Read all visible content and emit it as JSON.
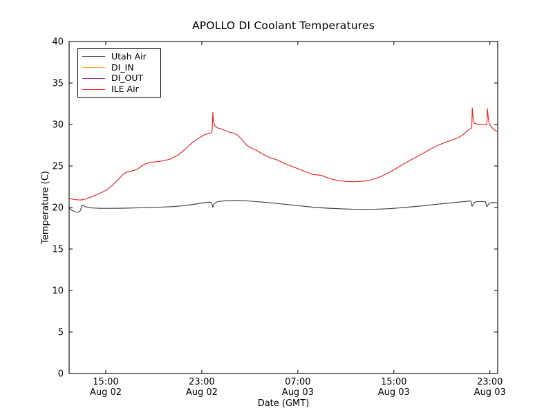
{
  "chart_data": {
    "type": "line",
    "title": "APOLLO DI Coolant Temperatures",
    "xlabel": "Date (GMT)",
    "ylabel": "Temperature (C)",
    "grid": false,
    "legend_position": "upper left",
    "ylim": [
      0,
      40
    ],
    "yticks": [
      0,
      5,
      10,
      15,
      20,
      25,
      30,
      35,
      40
    ],
    "x_unit_hours_since": "Aug 02 00:00 GMT",
    "xlim": [
      11.95,
      47.65
    ],
    "xticks": [
      {
        "value": 15,
        "label": "15:00",
        "sublabel": "Aug 02"
      },
      {
        "value": 23,
        "label": "23:00",
        "sublabel": "Aug 02"
      },
      {
        "value": 31,
        "label": "07:00",
        "sublabel": "Aug 03"
      },
      {
        "value": 39,
        "label": "15:00",
        "sublabel": "Aug 03"
      },
      {
        "value": 47,
        "label": "23:00",
        "sublabel": "Aug 03"
      }
    ],
    "series": [
      {
        "name": "Utah Air",
        "color": "#3f3f3f",
        "points": [
          [
            11.95,
            19.95
          ],
          [
            12.15,
            19.7
          ],
          [
            12.4,
            19.5
          ],
          [
            12.65,
            19.42
          ],
          [
            12.85,
            19.55
          ],
          [
            13.05,
            20.3
          ],
          [
            13.3,
            20.1
          ],
          [
            13.7,
            19.97
          ],
          [
            14.5,
            19.9
          ],
          [
            15.5,
            19.9
          ],
          [
            16.5,
            19.92
          ],
          [
            17.5,
            19.95
          ],
          [
            18.5,
            19.98
          ],
          [
            19.5,
            20.03
          ],
          [
            20.5,
            20.1
          ],
          [
            21.5,
            20.22
          ],
          [
            22.5,
            20.42
          ],
          [
            23.2,
            20.58
          ],
          [
            23.65,
            20.65
          ],
          [
            23.82,
            20.6
          ],
          [
            23.92,
            20.02
          ],
          [
            24.05,
            20.5
          ],
          [
            24.35,
            20.72
          ],
          [
            25.0,
            20.82
          ],
          [
            25.8,
            20.85
          ],
          [
            26.6,
            20.82
          ],
          [
            27.5,
            20.72
          ],
          [
            28.5,
            20.6
          ],
          [
            29.5,
            20.45
          ],
          [
            30.5,
            20.3
          ],
          [
            31.5,
            20.15
          ],
          [
            32.5,
            20.0
          ],
          [
            33.5,
            19.92
          ],
          [
            34.5,
            19.85
          ],
          [
            35.5,
            19.8
          ],
          [
            36.5,
            19.78
          ],
          [
            37.5,
            19.8
          ],
          [
            38.5,
            19.85
          ],
          [
            39.5,
            19.95
          ],
          [
            40.5,
            20.08
          ],
          [
            41.5,
            20.22
          ],
          [
            42.5,
            20.38
          ],
          [
            43.5,
            20.52
          ],
          [
            44.4,
            20.65
          ],
          [
            45.1,
            20.75
          ],
          [
            45.42,
            20.78
          ],
          [
            45.52,
            20.15
          ],
          [
            45.68,
            20.6
          ],
          [
            45.95,
            20.72
          ],
          [
            46.3,
            20.72
          ],
          [
            46.62,
            20.7
          ],
          [
            46.76,
            20.08
          ],
          [
            46.92,
            20.5
          ],
          [
            47.25,
            20.62
          ],
          [
            47.65,
            20.55
          ]
        ]
      },
      {
        "name": "DI_IN",
        "color": "#ffaa2b",
        "points": []
      },
      {
        "name": "DI_OUT",
        "color": "#993d99",
        "points": []
      },
      {
        "name": "ILE Air",
        "color": "#ee2222",
        "points": [
          [
            11.95,
            21.1
          ],
          [
            12.4,
            20.95
          ],
          [
            12.9,
            20.9
          ],
          [
            13.4,
            21.05
          ],
          [
            13.9,
            21.35
          ],
          [
            14.5,
            21.7
          ],
          [
            15.0,
            22.05
          ],
          [
            15.5,
            22.6
          ],
          [
            16.0,
            23.3
          ],
          [
            16.45,
            24.0
          ],
          [
            16.7,
            24.25
          ],
          [
            17.2,
            24.4
          ],
          [
            17.6,
            24.6
          ],
          [
            18.0,
            25.0
          ],
          [
            18.35,
            25.3
          ],
          [
            18.8,
            25.45
          ],
          [
            19.4,
            25.55
          ],
          [
            19.9,
            25.65
          ],
          [
            20.4,
            25.85
          ],
          [
            21.0,
            26.3
          ],
          [
            21.6,
            27.0
          ],
          [
            22.2,
            27.8
          ],
          [
            22.8,
            28.4
          ],
          [
            23.2,
            28.75
          ],
          [
            23.55,
            28.9
          ],
          [
            23.78,
            29.0
          ],
          [
            23.86,
            29.15
          ],
          [
            23.92,
            31.45
          ],
          [
            23.99,
            30.25
          ],
          [
            24.1,
            29.8
          ],
          [
            24.3,
            29.6
          ],
          [
            24.65,
            29.45
          ],
          [
            25.0,
            29.25
          ],
          [
            25.35,
            29.05
          ],
          [
            25.7,
            28.95
          ],
          [
            26.0,
            28.7
          ],
          [
            26.3,
            28.25
          ],
          [
            26.75,
            27.5
          ],
          [
            27.2,
            27.1
          ],
          [
            27.55,
            26.9
          ],
          [
            28.0,
            26.5
          ],
          [
            28.6,
            26.05
          ],
          [
            29.25,
            25.75
          ],
          [
            29.9,
            25.3
          ],
          [
            30.6,
            24.9
          ],
          [
            31.4,
            24.45
          ],
          [
            32.2,
            24.0
          ],
          [
            33.0,
            23.85
          ],
          [
            33.6,
            23.5
          ],
          [
            34.2,
            23.3
          ],
          [
            34.9,
            23.15
          ],
          [
            35.6,
            23.1
          ],
          [
            36.3,
            23.15
          ],
          [
            36.9,
            23.25
          ],
          [
            37.5,
            23.5
          ],
          [
            38.1,
            23.85
          ],
          [
            38.7,
            24.3
          ],
          [
            39.3,
            24.8
          ],
          [
            40.0,
            25.4
          ],
          [
            40.7,
            25.95
          ],
          [
            41.4,
            26.5
          ],
          [
            42.0,
            27.0
          ],
          [
            42.6,
            27.45
          ],
          [
            43.2,
            27.8
          ],
          [
            43.8,
            28.1
          ],
          [
            44.4,
            28.45
          ],
          [
            44.8,
            28.8
          ],
          [
            45.1,
            29.2
          ],
          [
            45.3,
            29.45
          ],
          [
            45.44,
            29.5
          ],
          [
            45.49,
            29.65
          ],
          [
            45.53,
            32.0
          ],
          [
            45.6,
            30.8
          ],
          [
            45.7,
            30.15
          ],
          [
            45.95,
            30.05
          ],
          [
            46.25,
            30.0
          ],
          [
            46.55,
            29.95
          ],
          [
            46.7,
            29.95
          ],
          [
            46.75,
            30.05
          ],
          [
            46.79,
            31.9
          ],
          [
            46.86,
            30.9
          ],
          [
            46.94,
            30.1
          ],
          [
            47.12,
            29.7
          ],
          [
            47.38,
            29.35
          ],
          [
            47.65,
            29.1
          ]
        ]
      }
    ]
  }
}
